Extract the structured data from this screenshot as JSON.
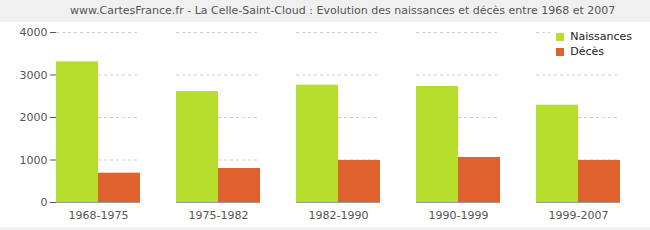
{
  "chart_data": {
    "type": "bar",
    "title": "www.CartesFrance.fr - La Celle-Saint-Cloud : Evolution des naissances et décès entre 1968 et 2007",
    "categories": [
      "1968-1975",
      "1975-1982",
      "1982-1990",
      "1990-1999",
      "1999-2007"
    ],
    "series": [
      {
        "name": "Naissances",
        "color": "#b5df2c",
        "values": [
          3310,
          2610,
          2760,
          2730,
          2290
        ]
      },
      {
        "name": "Décès",
        "color": "#e0622e",
        "values": [
          690,
          800,
          990,
          1060,
          990
        ]
      }
    ],
    "ylim": [
      0,
      4000
    ],
    "yticks": [
      0,
      1000,
      2000,
      3000,
      4000
    ],
    "grid": true,
    "legend": "top-right"
  }
}
